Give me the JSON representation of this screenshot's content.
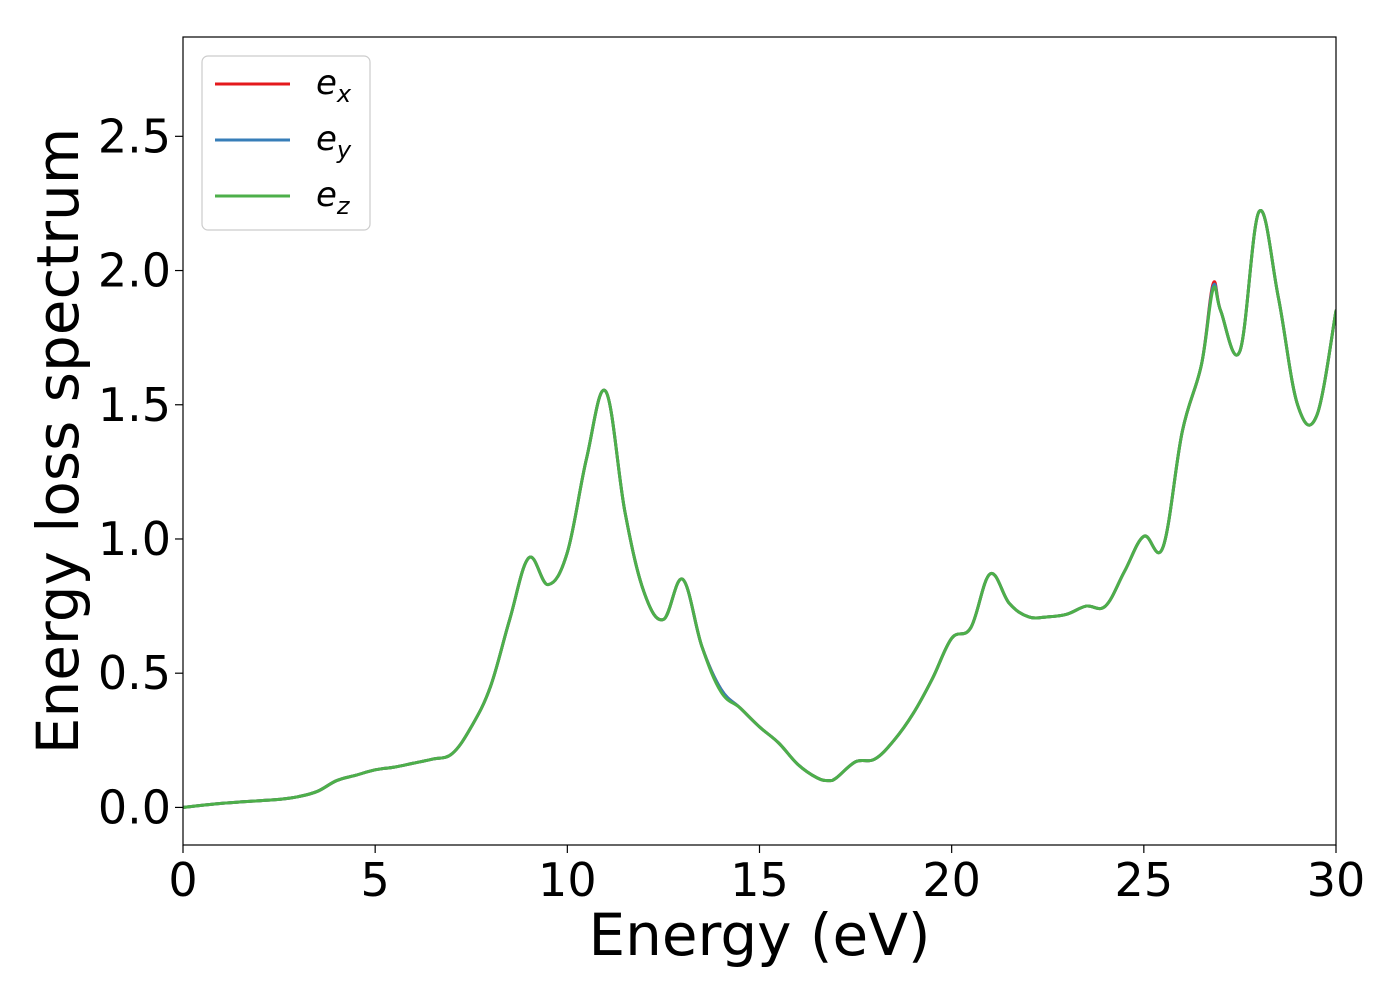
{
  "chart_data": {
    "type": "line",
    "xlabel": "Energy (eV)",
    "ylabel": "Energy loss spectrum",
    "xlim": [
      0,
      30
    ],
    "ylim": [
      -0.14,
      2.87
    ],
    "xticks": [
      0,
      5,
      10,
      15,
      20,
      25,
      30
    ],
    "yticks": [
      0.0,
      0.5,
      1.0,
      1.5,
      2.0,
      2.5
    ],
    "xtick_labels": [
      "0",
      "5",
      "10",
      "15",
      "20",
      "25",
      "30"
    ],
    "ytick_labels": [
      "0.0",
      "0.5",
      "1.0",
      "1.5",
      "2.0",
      "2.5"
    ],
    "grid": false,
    "legend_position": "top-left",
    "x": [
      0,
      1,
      2,
      2.5,
      3,
      3.5,
      4,
      4.5,
      5,
      5.5,
      6,
      6.5,
      7,
      7.5,
      8,
      8.5,
      9,
      9.5,
      10,
      10.5,
      11,
      11.5,
      12,
      12.5,
      13,
      13.5,
      14,
      14.5,
      15,
      15.5,
      16,
      16.5,
      16.8,
      17,
      17.5,
      18,
      18.5,
      19,
      19.5,
      20,
      20.5,
      21,
      21.5,
      22,
      22.5,
      23,
      23.5,
      24,
      24.5,
      25,
      25.5,
      26,
      26.5,
      26.8,
      27,
      27.5,
      28,
      28.5,
      29,
      29.5,
      30
    ],
    "series": [
      {
        "name": "e",
        "subscript": "x",
        "color": "#e41a1c",
        "values": [
          0.0,
          0.015,
          0.025,
          0.03,
          0.04,
          0.06,
          0.1,
          0.12,
          0.14,
          0.15,
          0.165,
          0.18,
          0.2,
          0.3,
          0.45,
          0.7,
          0.93,
          0.83,
          0.95,
          1.3,
          1.55,
          1.1,
          0.8,
          0.7,
          0.85,
          0.6,
          0.44,
          0.37,
          0.3,
          0.24,
          0.16,
          0.11,
          0.1,
          0.11,
          0.17,
          0.18,
          0.25,
          0.35,
          0.48,
          0.63,
          0.67,
          0.87,
          0.76,
          0.71,
          0.71,
          0.72,
          0.75,
          0.75,
          0.88,
          1.01,
          0.97,
          1.4,
          1.65,
          1.95,
          1.85,
          1.7,
          2.22,
          1.9,
          1.5,
          1.46,
          1.85
        ]
      },
      {
        "name": "e",
        "subscript": "y",
        "color": "#377eb8",
        "values": [
          0.0,
          0.015,
          0.025,
          0.03,
          0.04,
          0.06,
          0.1,
          0.12,
          0.14,
          0.15,
          0.165,
          0.18,
          0.2,
          0.3,
          0.45,
          0.7,
          0.93,
          0.83,
          0.95,
          1.3,
          1.55,
          1.1,
          0.8,
          0.7,
          0.85,
          0.6,
          0.44,
          0.37,
          0.3,
          0.24,
          0.16,
          0.11,
          0.1,
          0.11,
          0.17,
          0.18,
          0.25,
          0.35,
          0.48,
          0.63,
          0.67,
          0.87,
          0.76,
          0.71,
          0.71,
          0.72,
          0.75,
          0.75,
          0.88,
          1.01,
          0.97,
          1.4,
          1.65,
          1.94,
          1.85,
          1.7,
          2.22,
          1.9,
          1.5,
          1.46,
          1.85
        ]
      },
      {
        "name": "e",
        "subscript": "z",
        "color": "#4daf4a",
        "values": [
          0.0,
          0.015,
          0.025,
          0.03,
          0.04,
          0.06,
          0.1,
          0.12,
          0.14,
          0.15,
          0.165,
          0.18,
          0.2,
          0.3,
          0.45,
          0.7,
          0.93,
          0.83,
          0.95,
          1.3,
          1.55,
          1.1,
          0.8,
          0.7,
          0.85,
          0.6,
          0.43,
          0.37,
          0.3,
          0.24,
          0.16,
          0.11,
          0.1,
          0.11,
          0.17,
          0.18,
          0.25,
          0.35,
          0.48,
          0.63,
          0.67,
          0.87,
          0.76,
          0.71,
          0.71,
          0.72,
          0.75,
          0.75,
          0.88,
          1.01,
          0.97,
          1.4,
          1.65,
          1.93,
          1.85,
          1.7,
          2.22,
          1.9,
          1.5,
          1.46,
          1.85
        ]
      }
    ]
  }
}
